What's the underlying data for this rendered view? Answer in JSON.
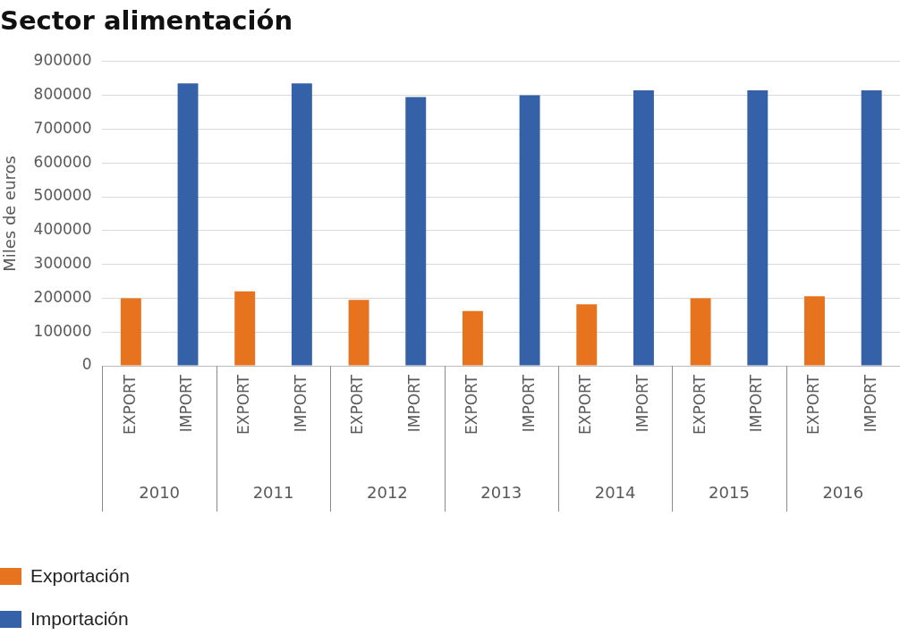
{
  "chart_data": {
    "type": "bar",
    "title": "Sector alimentación",
    "ylabel": "Miles de euros",
    "categories": [
      "EXPORT",
      "IMPORT",
      "EXPORT",
      "IMPORT",
      "EXPORT",
      "IMPORT",
      "EXPORT",
      "IMPORT",
      "EXPORT",
      "IMPORT",
      "EXPORT",
      "IMPORT",
      "EXPORT",
      "IMPORT"
    ],
    "annotations": [
      "2010",
      "2011",
      "2012",
      "2013",
      "2014",
      "2015",
      "2016"
    ],
    "series": [
      {
        "name": "Exportación",
        "color": "#e8731e",
        "values": [
          200000,
          null,
          220000,
          null,
          195000,
          null,
          162000,
          null,
          182000,
          null,
          200000,
          null,
          206000,
          null
        ]
      },
      {
        "name": "Importación",
        "color": "#3461a8",
        "values": [
          null,
          835000,
          null,
          835000,
          null,
          795000,
          null,
          800000,
          null,
          815000,
          null,
          815000,
          null,
          815000
        ]
      }
    ],
    "ylim": [
      0,
      900000
    ],
    "yticks": [
      0,
      100000,
      200000,
      300000,
      400000,
      500000,
      600000,
      700000,
      800000,
      900000
    ],
    "grid": "y",
    "legend": "bottom left"
  }
}
